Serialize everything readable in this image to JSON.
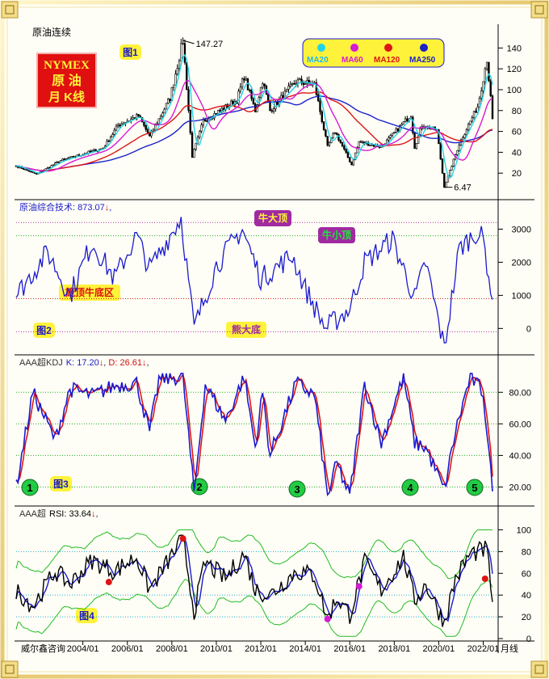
{
  "colors": {
    "frame": "#e8d58a",
    "candle": "#000000",
    "ma20": "#22d3e6",
    "ma60": "#d61ad6",
    "ma120": "#dd1515",
    "ma250": "#1a22c8",
    "kdj_k": "#1a1ad0",
    "kdj_d": "#e01515",
    "rsi": "#000000",
    "rsi_fast": "#1a1ad0",
    "band": "#22bb22",
    "composite": "#1a1ad0",
    "guide_green": "#22aa22",
    "guide_red": "#cc2222",
    "guide_purple": "#aa33aa",
    "badge_green": "#22cc44",
    "badge_yellow": "#fff23a",
    "nymex_bg": "#e01010",
    "nymex_text": "#fff23a"
  },
  "panel1": {
    "title": "原油连续",
    "badge": "图1",
    "nymex_lines": [
      "NYMEX",
      "原 油",
      "月 K线"
    ],
    "legend": [
      {
        "label": "MA20",
        "color": "#22d3e6"
      },
      {
        "label": "MA60",
        "color": "#d61ad6"
      },
      {
        "label": "MA120",
        "color": "#dd1515"
      },
      {
        "label": "MA250",
        "color": "#1a22c8"
      }
    ],
    "high_label": "147.27",
    "low_label": "6.47",
    "y_ticks": [
      "140",
      "120",
      "100",
      "80",
      "60",
      "40",
      "20"
    ]
  },
  "panel2": {
    "title": "原油综合技术: 873.07",
    "badge": "图2",
    "arrow": "↓",
    "trail": ",",
    "annotations": [
      "牛大顶",
      "牛小顶",
      "箴顶牛底区",
      "熊大底"
    ],
    "y_ticks": [
      "3000",
      "2000",
      "1000",
      "0"
    ]
  },
  "panel3": {
    "title_prefix": "AAA超KDJ",
    "k_label": "K: 17.20",
    "d_label": "D: 26.61",
    "arrow": "↓",
    "sep": ", ",
    "badge": "图3",
    "markers": [
      "1",
      "2",
      "3",
      "4",
      "5"
    ],
    "y_ticks": [
      "80.00",
      "60.00",
      "40.00",
      "20.00"
    ]
  },
  "panel4": {
    "title_prefix": "AAA超",
    "rsi_label": "RSI: 33.64",
    "arrow": "↓",
    "trail": ",",
    "badge": "图4",
    "y_ticks": [
      "100",
      "80",
      "60",
      "40",
      "20",
      "0"
    ]
  },
  "x_axis": {
    "source": "威尔鑫咨询",
    "labels": [
      "2004/01",
      "2006/01",
      "2008/01",
      "2010/01",
      "2012/01",
      "2014/01",
      "2016/01",
      "2018/01",
      "2020/01",
      "2022/01"
    ],
    "period": "月线"
  },
  "chart_data": {
    "type": "line",
    "x_start": "2001/01",
    "x_end": "2022/06",
    "price_anchors": [
      [
        "2001/01",
        27
      ],
      [
        "2001/12",
        19
      ],
      [
        "2003/01",
        32
      ],
      [
        "2004/12",
        44
      ],
      [
        "2005/08",
        66
      ],
      [
        "2006/07",
        75
      ],
      [
        "2007/01",
        55
      ],
      [
        "2007/12",
        92
      ],
      [
        "2008/07",
        147.27
      ],
      [
        "2008/12",
        36
      ],
      [
        "2009/06",
        70
      ],
      [
        "2010/12",
        90
      ],
      [
        "2011/04",
        113
      ],
      [
        "2011/10",
        80
      ],
      [
        "2012/02",
        109
      ],
      [
        "2012/06",
        80
      ],
      [
        "2013/08",
        108
      ],
      [
        "2014/06",
        105
      ],
      [
        "2015/01",
        45
      ],
      [
        "2015/05",
        60
      ],
      [
        "2016/02",
        28
      ],
      [
        "2016/06",
        50
      ],
      [
        "2017/06",
        45
      ],
      [
        "2018/10",
        76
      ],
      [
        "2018/12",
        45
      ],
      [
        "2019/04",
        66
      ],
      [
        "2019/12",
        61
      ],
      [
        "2020/04",
        6.47
      ],
      [
        "2020/12",
        48
      ],
      [
        "2021/10",
        84
      ],
      [
        "2022/03",
        130
      ],
      [
        "2022/06",
        72
      ]
    ],
    "composite_anchors": [
      [
        "2001/01",
        1000
      ],
      [
        "2002/06",
        2300
      ],
      [
        "2003/06",
        1000
      ],
      [
        "2004/06",
        2600
      ],
      [
        "2005/06",
        1500
      ],
      [
        "2006/06",
        2800
      ],
      [
        "2007/01",
        1800
      ],
      [
        "2008/06",
        3350
      ],
      [
        "2009/01",
        0
      ],
      [
        "2010/01",
        1900
      ],
      [
        "2011/03",
        3000
      ],
      [
        "2012/01",
        1500
      ],
      [
        "2013/06",
        2200
      ],
      [
        "2014/01",
        1200
      ],
      [
        "2014/12",
        0
      ],
      [
        "2016/01",
        600
      ],
      [
        "2016/09",
        2000
      ],
      [
        "2017/12",
        2700
      ],
      [
        "2018/12",
        900
      ],
      [
        "2019/06",
        2000
      ],
      [
        "2020/04",
        -600
      ],
      [
        "2020/12",
        2400
      ],
      [
        "2021/09",
        2900
      ],
      [
        "2022/01",
        2700
      ],
      [
        "2022/06",
        873.07
      ]
    ],
    "kdj_k_anchors": [
      [
        "2001/01",
        20
      ],
      [
        "2001/10",
        80
      ],
      [
        "2002/10",
        50
      ],
      [
        "2003/06",
        82
      ],
      [
        "2004/06",
        78
      ],
      [
        "2005/06",
        84
      ],
      [
        "2006/06",
        86
      ],
      [
        "2007/01",
        55
      ],
      [
        "2007/06",
        88
      ],
      [
        "2008/07",
        90
      ],
      [
        "2009/01",
        16
      ],
      [
        "2009/07",
        85
      ],
      [
        "2010/06",
        62
      ],
      [
        "2011/04",
        90
      ],
      [
        "2011/10",
        45
      ],
      [
        "2012/02",
        80
      ],
      [
        "2012/06",
        40
      ],
      [
        "2013/08",
        86
      ],
      [
        "2014/06",
        78
      ],
      [
        "2015/01",
        14
      ],
      [
        "2015/06",
        35
      ],
      [
        "2016/01",
        14
      ],
      [
        "2016/09",
        85
      ],
      [
        "2017/06",
        48
      ],
      [
        "2018/06",
        90
      ],
      [
        "2018/12",
        48
      ],
      [
        "2019/06",
        45
      ],
      [
        "2020/04",
        18
      ],
      [
        "2020/10",
        55
      ],
      [
        "2021/06",
        90
      ],
      [
        "2022/01",
        80
      ],
      [
        "2022/06",
        17.2
      ]
    ],
    "rsi_anchors": [
      [
        "2001/01",
        45
      ],
      [
        "2001/10",
        30
      ],
      [
        "2002/10",
        62
      ],
      [
        "2003/06",
        50
      ],
      [
        "2004/06",
        72
      ],
      [
        "2005/06",
        62
      ],
      [
        "2006/06",
        75
      ],
      [
        "2007/01",
        45
      ],
      [
        "2008/07",
        92
      ],
      [
        "2009/01",
        25
      ],
      [
        "2009/07",
        70
      ],
      [
        "2010/06",
        55
      ],
      [
        "2011/04",
        78
      ],
      [
        "2011/10",
        45
      ],
      [
        "2012/06",
        40
      ],
      [
        "2013/08",
        62
      ],
      [
        "2014/06",
        58
      ],
      [
        "2015/01",
        18
      ],
      [
        "2015/06",
        38
      ],
      [
        "2016/01",
        22
      ],
      [
        "2016/09",
        70
      ],
      [
        "2017/06",
        45
      ],
      [
        "2018/06",
        75
      ],
      [
        "2018/12",
        35
      ],
      [
        "2019/06",
        50
      ],
      [
        "2020/04",
        15
      ],
      [
        "2020/10",
        55
      ],
      [
        "2021/06",
        78
      ],
      [
        "2022/03",
        82
      ],
      [
        "2022/06",
        33.64
      ]
    ],
    "ylim": {
      "price": [
        0,
        155
      ],
      "composite": [
        -700,
        3500
      ],
      "kdj": [
        10,
        95
      ],
      "rsi": [
        0,
        110
      ]
    }
  }
}
